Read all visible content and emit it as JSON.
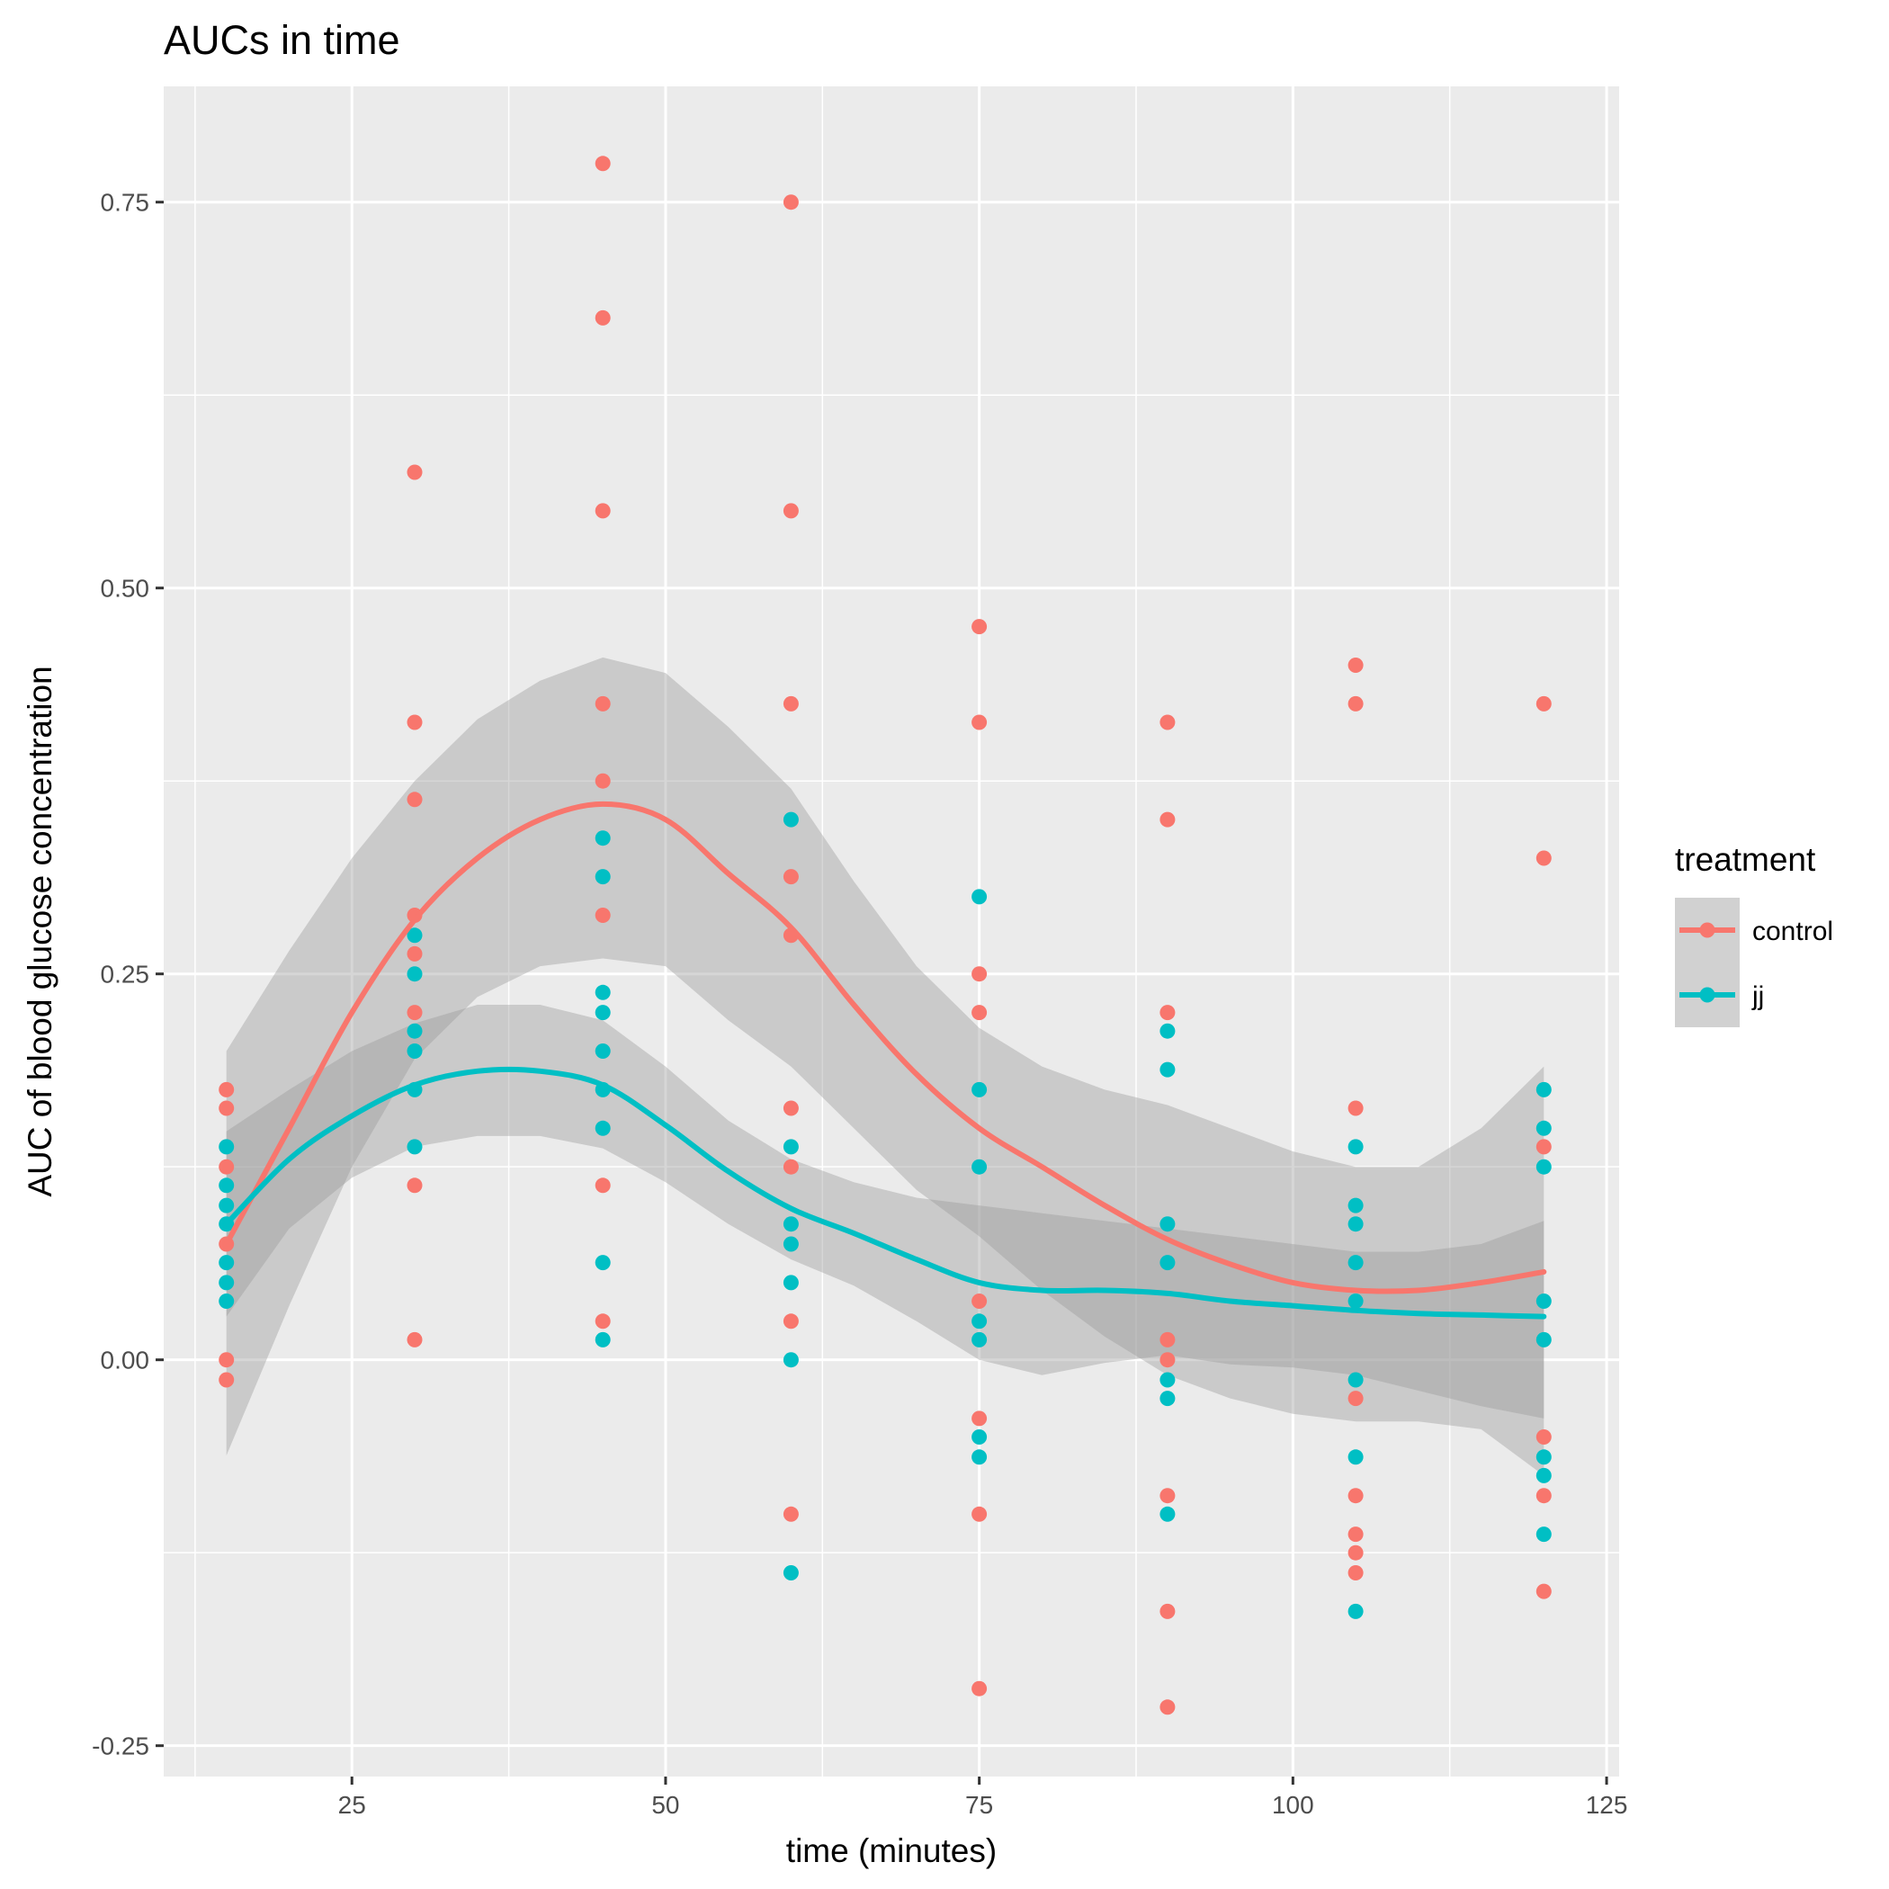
{
  "chart_data": {
    "type": "scatter",
    "title": "AUCs in time",
    "xlabel": "time (minutes)",
    "ylabel": "AUC of blood glucose concentration",
    "xlim": [
      10,
      126
    ],
    "ylim": [
      -0.27,
      0.825
    ],
    "x_ticks": [
      25,
      50,
      75,
      100,
      125
    ],
    "x_tick_labels": [
      "25",
      "50",
      "75",
      "100",
      "125"
    ],
    "y_ticks": [
      -0.25,
      0,
      0.25,
      0.5,
      0.75
    ],
    "y_tick_labels": [
      "-0.25",
      "0.00",
      "0.25",
      "0.50",
      "0.75"
    ],
    "grid": true,
    "legend": {
      "title": "treatment",
      "position": "right"
    },
    "series": [
      {
        "name": "control",
        "color": "#F8766D",
        "points": [
          [
            15,
            0.175
          ],
          [
            15,
            0.163
          ],
          [
            15,
            0.125
          ],
          [
            15,
            0.075
          ],
          [
            15,
            0.0
          ],
          [
            15,
            -0.013
          ],
          [
            30,
            0.575
          ],
          [
            30,
            0.413
          ],
          [
            30,
            0.363
          ],
          [
            30,
            0.288
          ],
          [
            30,
            0.263
          ],
          [
            30,
            0.225
          ],
          [
            30,
            0.113
          ],
          [
            30,
            0.013
          ],
          [
            45,
            0.775
          ],
          [
            45,
            0.675
          ],
          [
            45,
            0.55
          ],
          [
            45,
            0.425
          ],
          [
            45,
            0.375
          ],
          [
            45,
            0.288
          ],
          [
            45,
            0.113
          ],
          [
            45,
            0.025
          ],
          [
            60,
            0.75
          ],
          [
            60,
            0.55
          ],
          [
            60,
            0.425
          ],
          [
            60,
            0.313
          ],
          [
            60,
            0.275
          ],
          [
            60,
            0.163
          ],
          [
            60,
            0.125
          ],
          [
            60,
            0.025
          ],
          [
            60,
            -0.1
          ],
          [
            75,
            0.475
          ],
          [
            75,
            0.413
          ],
          [
            75,
            0.25
          ],
          [
            75,
            0.225
          ],
          [
            75,
            0.038
          ],
          [
            75,
            -0.038
          ],
          [
            75,
            -0.1
          ],
          [
            75,
            -0.213
          ],
          [
            90,
            0.413
          ],
          [
            90,
            0.35
          ],
          [
            90,
            0.225
          ],
          [
            90,
            0.013
          ],
          [
            90,
            0.0
          ],
          [
            90,
            -0.088
          ],
          [
            90,
            -0.163
          ],
          [
            90,
            -0.225
          ],
          [
            105,
            0.45
          ],
          [
            105,
            0.425
          ],
          [
            105,
            0.163
          ],
          [
            105,
            -0.025
          ],
          [
            105,
            -0.088
          ],
          [
            105,
            -0.113
          ],
          [
            105,
            -0.125
          ],
          [
            105,
            -0.138
          ],
          [
            120,
            0.425
          ],
          [
            120,
            0.325
          ],
          [
            120,
            0.138
          ],
          [
            120,
            -0.05
          ],
          [
            120,
            -0.088
          ],
          [
            120,
            -0.15
          ]
        ],
        "smooth": {
          "x": [
            15,
            20,
            25,
            30,
            35,
            40,
            45,
            50,
            55,
            60,
            65,
            70,
            75,
            80,
            85,
            90,
            95,
            100,
            105,
            110,
            115,
            120
          ],
          "y": [
            0.075,
            0.15,
            0.225,
            0.285,
            0.325,
            0.35,
            0.36,
            0.35,
            0.315,
            0.28,
            0.23,
            0.185,
            0.15,
            0.125,
            0.1,
            0.078,
            0.062,
            0.05,
            0.045,
            0.045,
            0.05,
            0.057
          ],
          "upper": [
            0.2,
            0.265,
            0.325,
            0.375,
            0.415,
            0.44,
            0.455,
            0.445,
            0.41,
            0.37,
            0.31,
            0.255,
            0.215,
            0.19,
            0.175,
            0.165,
            0.15,
            0.135,
            0.125,
            0.125,
            0.15,
            0.19
          ],
          "lower": [
            -0.062,
            0.035,
            0.125,
            0.195,
            0.235,
            0.255,
            0.26,
            0.255,
            0.22,
            0.19,
            0.15,
            0.11,
            0.08,
            0.045,
            0.015,
            -0.01,
            -0.025,
            -0.035,
            -0.04,
            -0.04,
            -0.045,
            -0.075
          ]
        }
      },
      {
        "name": "jj",
        "color": "#00BFC4",
        "points": [
          [
            15,
            0.138
          ],
          [
            15,
            0.113
          ],
          [
            15,
            0.1
          ],
          [
            15,
            0.088
          ],
          [
            15,
            0.063
          ],
          [
            15,
            0.05
          ],
          [
            15,
            0.038
          ],
          [
            30,
            0.275
          ],
          [
            30,
            0.25
          ],
          [
            30,
            0.213
          ],
          [
            30,
            0.2
          ],
          [
            30,
            0.175
          ],
          [
            30,
            0.138
          ],
          [
            45,
            0.338
          ],
          [
            45,
            0.313
          ],
          [
            45,
            0.238
          ],
          [
            45,
            0.225
          ],
          [
            45,
            0.2
          ],
          [
            45,
            0.175
          ],
          [
            45,
            0.15
          ],
          [
            45,
            0.063
          ],
          [
            45,
            0.013
          ],
          [
            60,
            0.35
          ],
          [
            60,
            0.138
          ],
          [
            60,
            0.088
          ],
          [
            60,
            0.075
          ],
          [
            60,
            0.05
          ],
          [
            60,
            0.0
          ],
          [
            60,
            -0.138
          ],
          [
            75,
            0.3
          ],
          [
            75,
            0.175
          ],
          [
            75,
            0.125
          ],
          [
            75,
            0.025
          ],
          [
            75,
            0.013
          ],
          [
            75,
            -0.05
          ],
          [
            75,
            -0.063
          ],
          [
            90,
            0.213
          ],
          [
            90,
            0.188
          ],
          [
            90,
            0.088
          ],
          [
            90,
            0.063
          ],
          [
            90,
            -0.013
          ],
          [
            90,
            -0.025
          ],
          [
            90,
            -0.1
          ],
          [
            105,
            0.138
          ],
          [
            105,
            0.1
          ],
          [
            105,
            0.088
          ],
          [
            105,
            0.063
          ],
          [
            105,
            0.038
          ],
          [
            105,
            -0.013
          ],
          [
            105,
            -0.063
          ],
          [
            105,
            -0.163
          ],
          [
            120,
            0.175
          ],
          [
            120,
            0.15
          ],
          [
            120,
            0.125
          ],
          [
            120,
            0.038
          ],
          [
            120,
            0.013
          ],
          [
            120,
            -0.063
          ],
          [
            120,
            -0.075
          ],
          [
            120,
            -0.113
          ]
        ],
        "smooth": {
          "x": [
            15,
            20,
            25,
            30,
            35,
            40,
            45,
            50,
            55,
            60,
            65,
            70,
            75,
            80,
            85,
            90,
            95,
            100,
            105,
            110,
            115,
            120
          ],
          "y": [
            0.088,
            0.13,
            0.158,
            0.178,
            0.187,
            0.187,
            0.178,
            0.152,
            0.122,
            0.098,
            0.082,
            0.065,
            0.05,
            0.045,
            0.045,
            0.043,
            0.038,
            0.035,
            0.032,
            0.03,
            0.029,
            0.028
          ],
          "upper": [
            0.148,
            0.175,
            0.2,
            0.218,
            0.23,
            0.23,
            0.22,
            0.19,
            0.155,
            0.13,
            0.115,
            0.105,
            0.1,
            0.095,
            0.09,
            0.085,
            0.08,
            0.075,
            0.07,
            0.07,
            0.075,
            0.09
          ],
          "lower": [
            0.028,
            0.085,
            0.118,
            0.138,
            0.145,
            0.145,
            0.137,
            0.115,
            0.088,
            0.065,
            0.048,
            0.025,
            0.0,
            -0.01,
            -0.002,
            0.003,
            -0.003,
            -0.005,
            -0.01,
            -0.02,
            -0.03,
            -0.038
          ]
        }
      }
    ]
  }
}
